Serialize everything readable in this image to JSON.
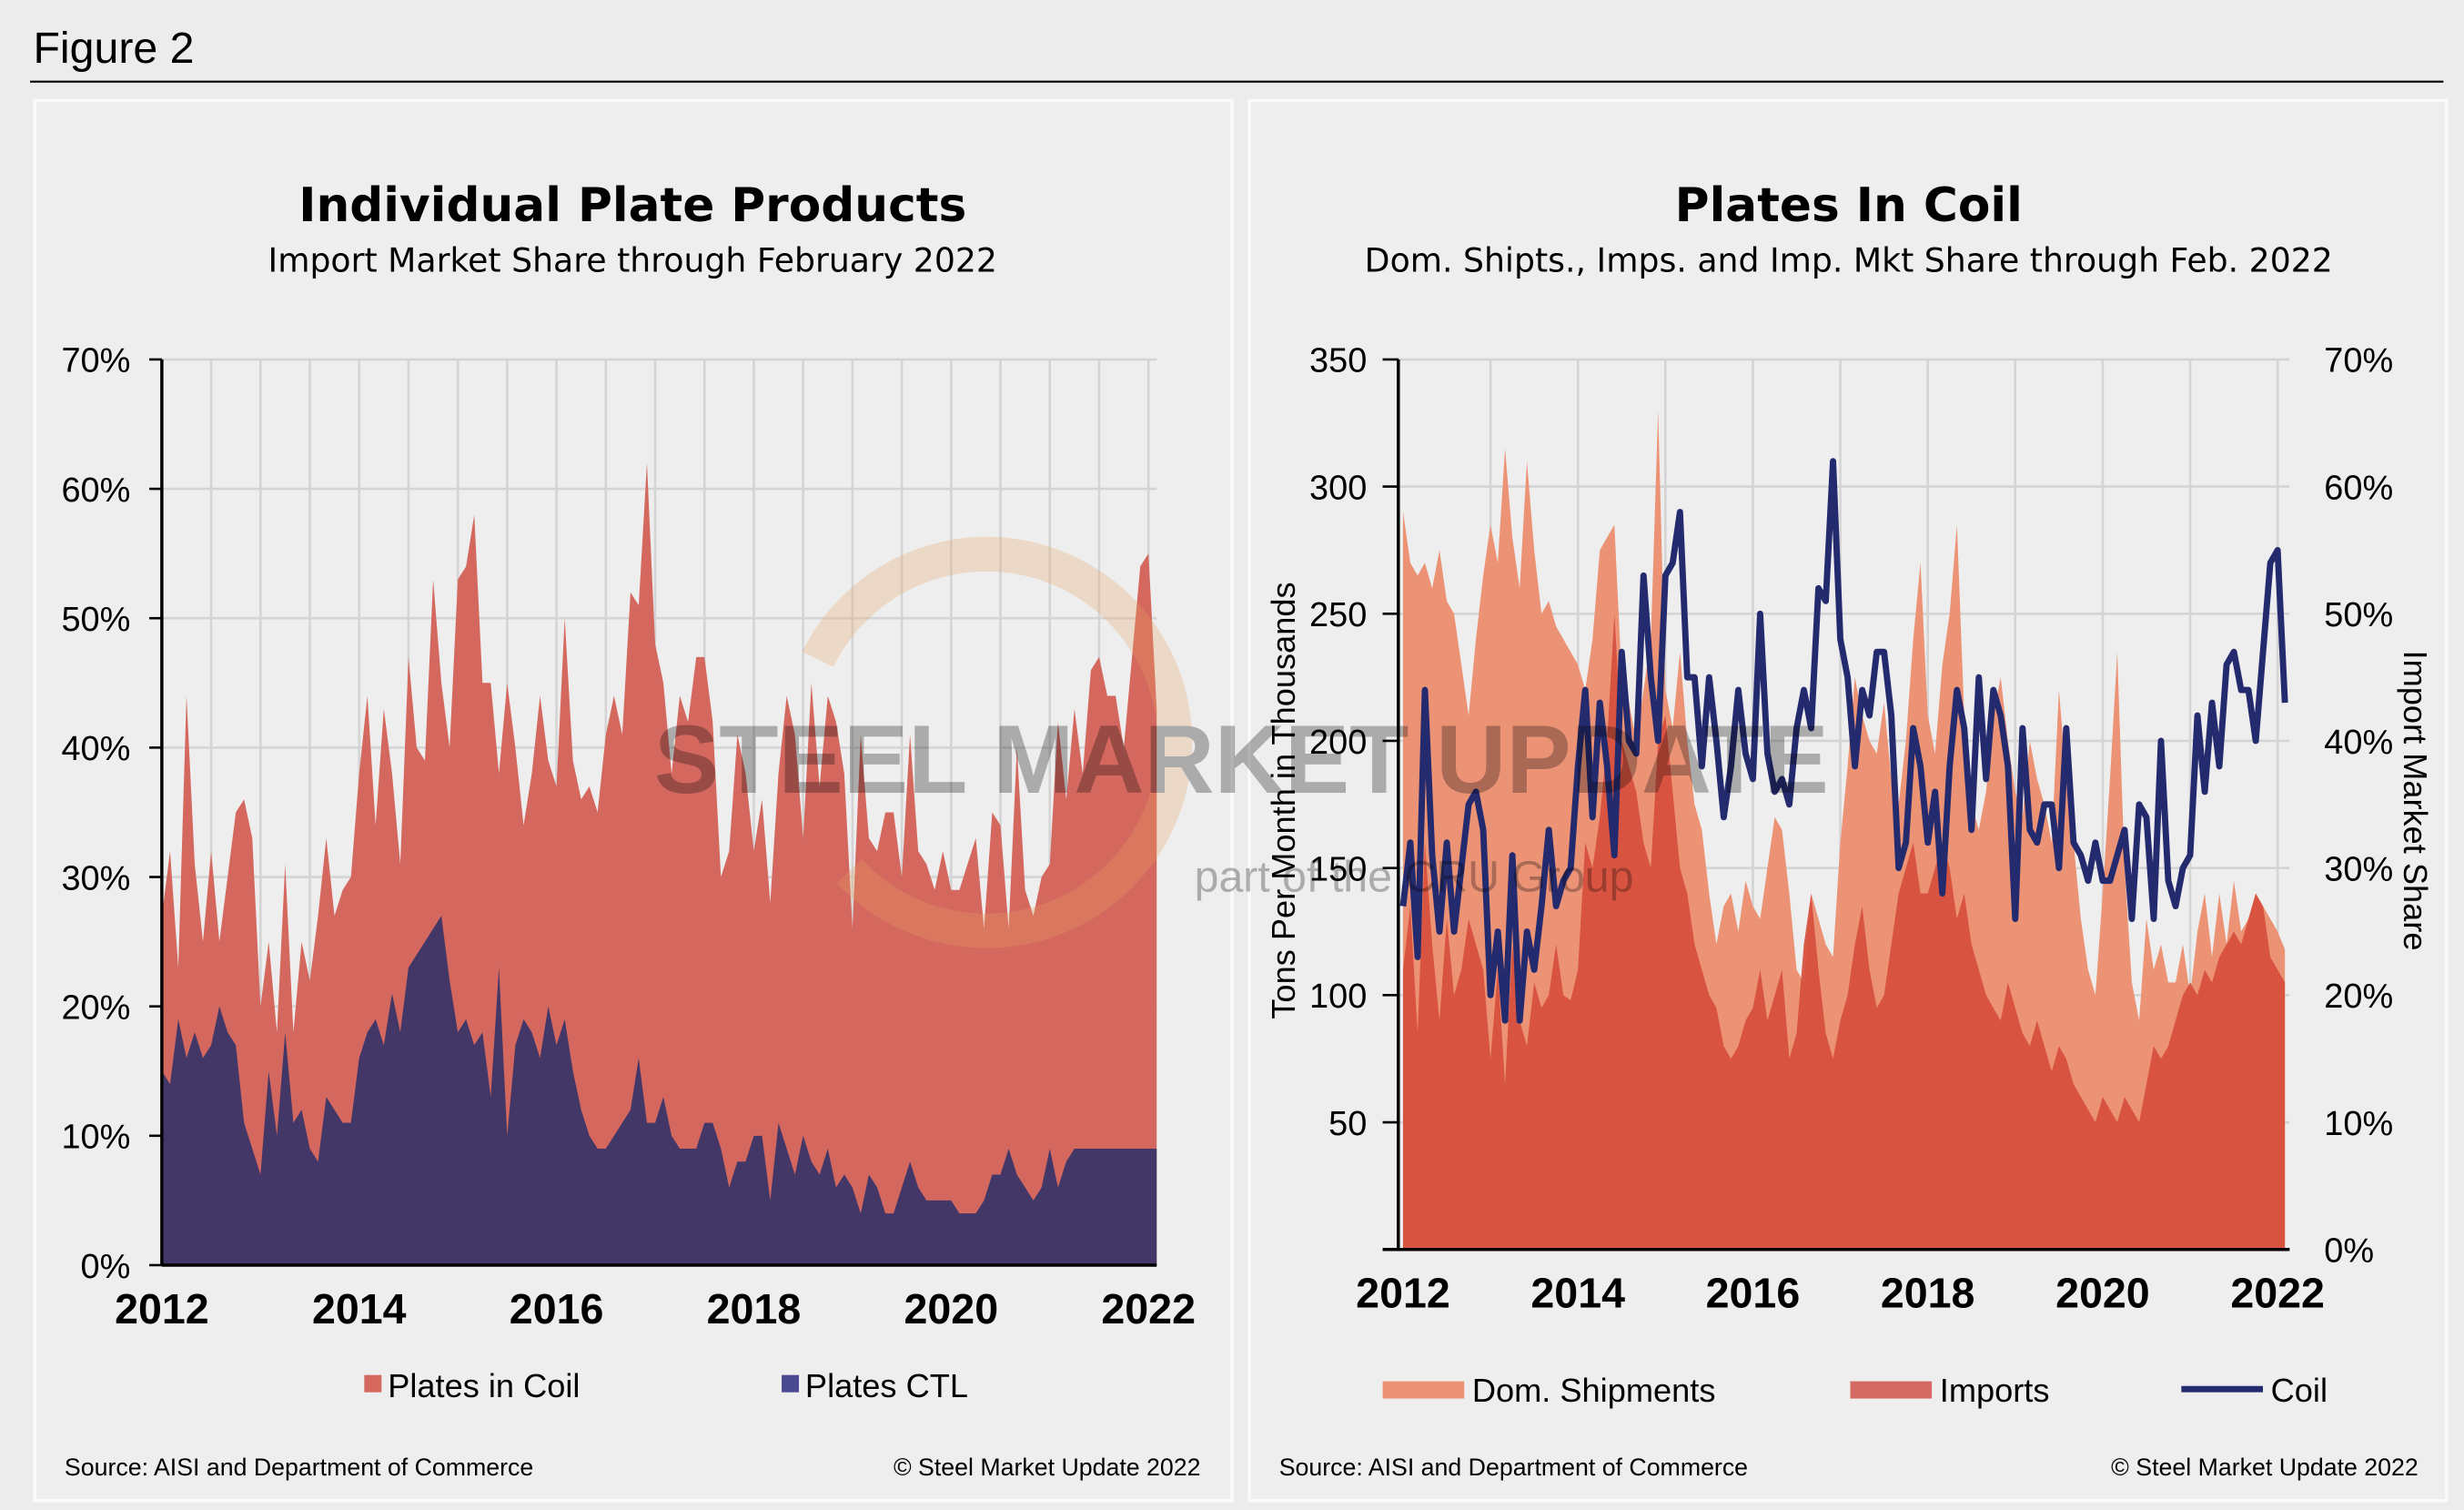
{
  "figure_label": "Figure 2",
  "watermark": {
    "main": "STEEL MARKET UPDATE",
    "sub": "part of the CRU Group",
    "cru": "CRU"
  },
  "colors": {
    "coil_area": "#d4685f",
    "ctl_area": "#433767",
    "dom": "#ec9376",
    "imports": "#d6503d",
    "imports_legend": "#d46a63",
    "coil_line": "#242a6e",
    "ctl_legend": "#4a4890"
  },
  "chart_data": [
    {
      "type": "area",
      "title": "Individual Plate Products",
      "subtitle": "Import Market Share through February 2022",
      "x_start": "2012-01",
      "x_end": "2022-02",
      "frequency": "monthly",
      "ylim": [
        0,
        70
      ],
      "yticks": [
        "0%",
        "10%",
        "20%",
        "30%",
        "40%",
        "50%",
        "60%",
        "70%"
      ],
      "xticks": [
        "2012",
        "2014",
        "2016",
        "2018",
        "2020",
        "2022"
      ],
      "legend": [
        "Plates in Coil",
        "Plates CTL"
      ],
      "legend_position": "bottom",
      "series": [
        {
          "name": "Plates in Coil",
          "values": [
            27,
            32,
            23,
            44,
            31,
            25,
            32,
            25,
            30,
            35,
            36,
            33,
            20,
            25,
            18,
            31,
            18,
            25,
            22,
            27,
            33,
            27,
            29,
            30,
            38,
            44,
            34,
            43,
            38,
            31,
            47,
            40,
            39,
            53,
            45,
            40,
            53,
            54,
            58,
            45,
            45,
            38,
            45,
            40,
            34,
            38,
            44,
            39,
            37,
            50,
            39,
            36,
            37,
            35,
            41,
            44,
            41,
            52,
            51,
            62,
            48,
            45,
            38,
            44,
            42,
            47,
            47,
            42,
            30,
            32,
            41,
            38,
            32,
            36,
            28,
            38,
            44,
            41,
            33,
            45,
            37,
            44,
            42,
            38,
            26,
            41,
            33,
            32,
            35,
            35,
            30,
            41,
            32,
            31,
            29,
            32,
            29,
            29,
            31,
            33,
            26,
            35,
            34,
            26,
            40,
            29,
            27,
            30,
            31,
            42,
            36,
            43,
            38,
            46,
            47,
            44,
            44,
            40,
            47,
            54,
            55,
            43
          ]
        },
        {
          "name": "Plates CTL",
          "values": [
            15,
            14,
            19,
            16,
            18,
            16,
            17,
            20,
            18,
            17,
            11,
            9,
            7,
            15,
            10,
            18,
            11,
            12,
            9,
            8,
            13,
            12,
            11,
            11,
            16,
            18,
            19,
            17,
            21,
            18,
            23,
            24,
            25,
            26,
            27,
            22,
            18,
            19,
            17,
            18,
            13,
            23,
            10,
            17,
            19,
            18,
            16,
            20,
            17,
            19,
            15,
            12,
            10,
            9,
            9,
            10,
            11,
            12,
            16,
            11,
            11,
            13,
            10,
            9,
            9,
            9,
            11,
            11,
            9,
            6,
            8,
            8,
            10,
            10,
            5,
            11,
            9,
            7,
            10,
            8,
            7,
            9,
            6,
            7,
            6,
            4,
            7,
            6,
            4,
            4,
            6,
            8,
            6,
            5,
            5,
            5,
            5,
            4,
            4,
            4,
            5,
            7,
            7,
            9,
            7,
            6,
            5,
            6,
            9,
            6,
            8,
            9,
            9,
            9,
            9,
            9,
            9,
            9,
            9,
            9,
            9,
            9
          ]
        }
      ],
      "source": "Source: AISI and Department of Commerce",
      "copyright": "© Steel Market Update 2022"
    },
    {
      "type": "area+line",
      "title": "Plates In Coil",
      "subtitle": "Dom. Shipts., Imps. and Imp. Mkt Share through Feb. 2022",
      "x_start": "2012-01",
      "x_end": "2022-02",
      "frequency": "monthly",
      "ylabel": "Tons Per Month in Thousands",
      "y2label": "Import Market Share",
      "ylim": [
        0,
        350
      ],
      "y2lim": [
        0,
        70
      ],
      "yticks": [
        "50",
        "100",
        "150",
        "200",
        "250",
        "300",
        "350"
      ],
      "y2ticks": [
        "0%",
        "10%",
        "20%",
        "30%",
        "40%",
        "50%",
        "60%",
        "70%"
      ],
      "xticks": [
        "2012",
        "2014",
        "2016",
        "2018",
        "2020",
        "2022"
      ],
      "legend": [
        "Dom. Shipments",
        "Imports",
        "Coil"
      ],
      "legend_position": "bottom",
      "series": [
        {
          "name": "Dom. Shipments",
          "axis": "left",
          "values": [
            290,
            270,
            265,
            270,
            260,
            275,
            255,
            250,
            230,
            210,
            240,
            265,
            285,
            270,
            315,
            280,
            260,
            310,
            275,
            250,
            255,
            245,
            240,
            235,
            230,
            220,
            240,
            275,
            280,
            285,
            225,
            215,
            200,
            220,
            240,
            330,
            220,
            205,
            235,
            200,
            175,
            165,
            140,
            120,
            135,
            140,
            125,
            145,
            135,
            130,
            150,
            170,
            165,
            140,
            110,
            105,
            140,
            130,
            120,
            115,
            160,
            190,
            225,
            210,
            200,
            195,
            215,
            185,
            175,
            200,
            240,
            270,
            210,
            195,
            230,
            250,
            285,
            210,
            175,
            165,
            180,
            210,
            225,
            200,
            180,
            170,
            200,
            185,
            175,
            160,
            220,
            185,
            160,
            130,
            110,
            100,
            140,
            185,
            235,
            150,
            105,
            90,
            130,
            110,
            120,
            105,
            105,
            120,
            100,
            125,
            140,
            115,
            140,
            120,
            145,
            125,
            130,
            140,
            135,
            130,
            125,
            118
          ]
        },
        {
          "name": "Imports",
          "axis": "left",
          "values": [
            110,
            135,
            85,
            160,
            120,
            90,
            130,
            100,
            110,
            130,
            120,
            110,
            75,
            110,
            65,
            120,
            90,
            80,
            105,
            95,
            100,
            120,
            100,
            98,
            110,
            160,
            150,
            170,
            200,
            250,
            200,
            190,
            180,
            160,
            150,
            200,
            210,
            180,
            150,
            140,
            120,
            110,
            100,
            95,
            80,
            75,
            80,
            90,
            95,
            110,
            90,
            100,
            110,
            75,
            85,
            120,
            140,
            110,
            85,
            75,
            90,
            100,
            120,
            135,
            110,
            95,
            100,
            120,
            140,
            150,
            160,
            140,
            140,
            150,
            160,
            150,
            130,
            140,
            120,
            110,
            100,
            95,
            90,
            105,
            95,
            85,
            80,
            90,
            80,
            70,
            80,
            75,
            65,
            60,
            55,
            50,
            60,
            55,
            50,
            60,
            55,
            50,
            65,
            80,
            75,
            80,
            90,
            100,
            105,
            100,
            110,
            105,
            115,
            120,
            125,
            120,
            130,
            140,
            135,
            115,
            110,
            105
          ]
        },
        {
          "name": "Coil",
          "axis": "right",
          "ref": "Plates in Coil"
        }
      ],
      "source": "Source: AISI and Department of Commerce",
      "copyright": "© Steel Market Update 2022"
    }
  ]
}
